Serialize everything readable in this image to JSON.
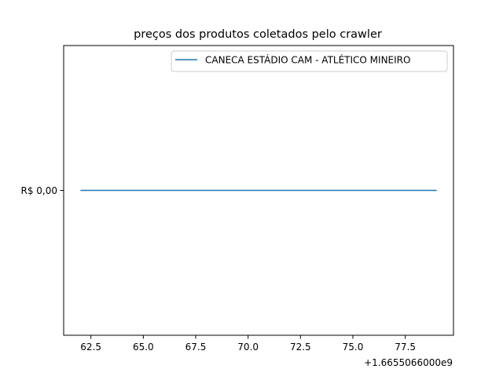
{
  "chart_data": {
    "type": "line",
    "title": "preços dos produtos coletados pelo crawler",
    "xlabel": "",
    "ylabel": "",
    "x_offset_label": "+1.6655066000e9",
    "xlim": [
      61.2,
      79.8
    ],
    "ylim": [
      -0.055,
      0.055
    ],
    "x_ticks": [
      62.5,
      65.0,
      67.5,
      70.0,
      72.5,
      75.0,
      77.5
    ],
    "x_tick_labels": [
      "62.5",
      "65.0",
      "67.5",
      "70.0",
      "72.5",
      "75.0",
      "77.5"
    ],
    "y_ticks": [
      0
    ],
    "y_tick_labels": [
      "R$ 0,00"
    ],
    "grid": false,
    "legend_position": "top-right",
    "series": [
      {
        "name": "CANECA ESTÁDIO CAM - ATLÉTICO MINEIRO",
        "color": "#1f77b4",
        "x": [
          62.0,
          79.0
        ],
        "y": [
          0,
          0
        ]
      }
    ]
  }
}
